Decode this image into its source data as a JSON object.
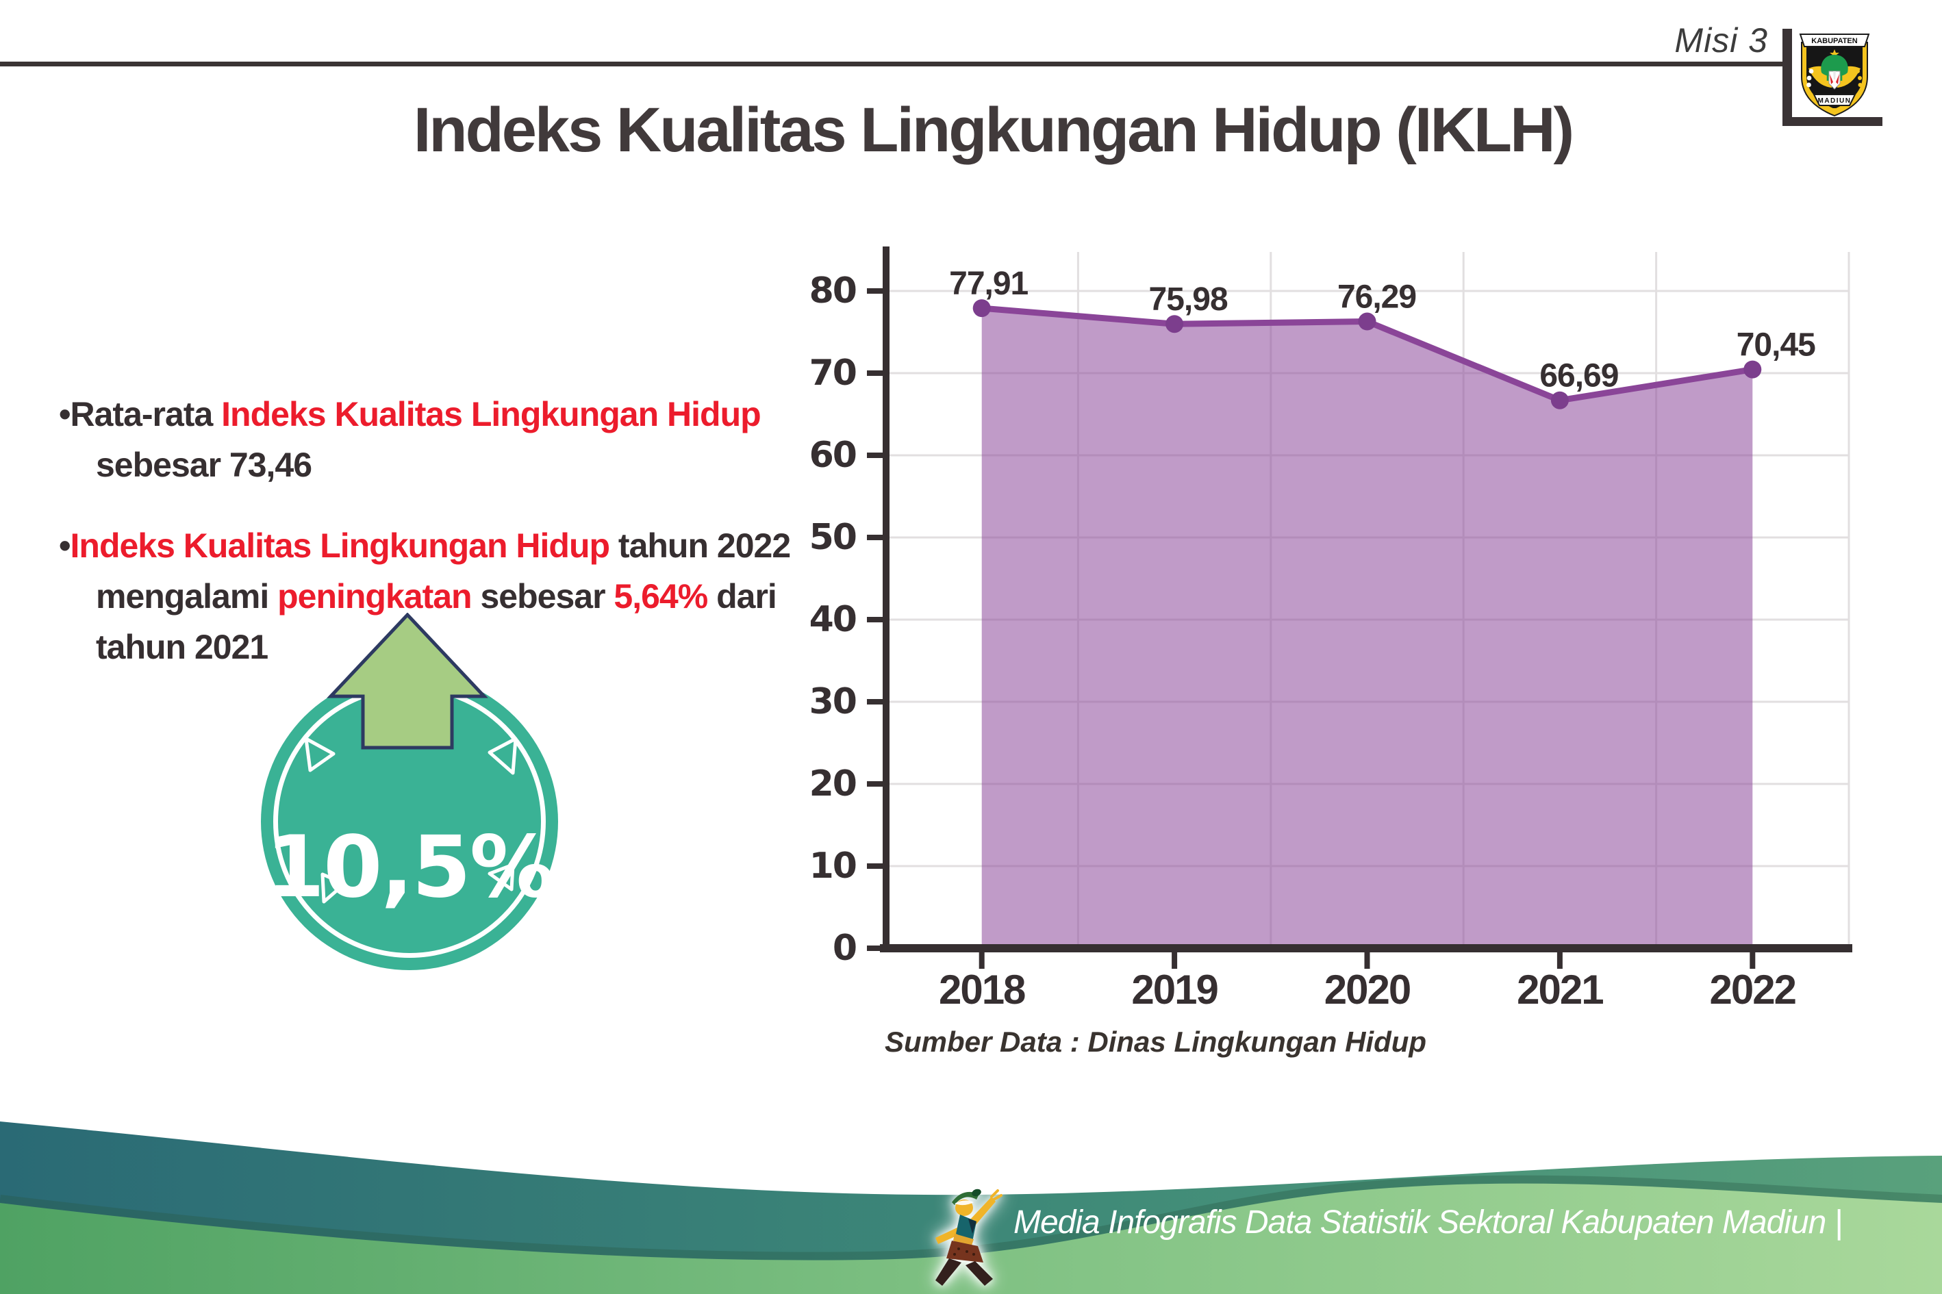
{
  "header": {
    "misi_label": "Misi 3",
    "title": "Indeks Kualitas Lingkungan Hidup (IKLH)"
  },
  "logo": {
    "top_text": "KABUPATEN",
    "bottom_text": "MADIUN"
  },
  "bullet_char": "•",
  "insights": [
    {
      "lines": [
        [
          {
            "t": "Rata-rata ",
            "c": "dark"
          },
          {
            "t": "Indeks Kualitas Lingkungan Hidup",
            "c": "red"
          }
        ],
        [
          {
            "t": "sebesar 73,46",
            "c": "dark"
          }
        ]
      ]
    },
    {
      "lines": [
        [
          {
            "t": "Indeks Kualitas Lingkungan Hidup",
            "c": "red"
          },
          {
            "t": " tahun 2022",
            "c": "dark"
          }
        ],
        [
          {
            "t": "mengalami ",
            "c": "dark"
          },
          {
            "t": "peningkatan",
            "c": "red"
          },
          {
            "t": " sebesar ",
            "c": "dark"
          },
          {
            "t": "5,64%",
            "c": "red"
          },
          {
            "t": " dari",
            "c": "dark"
          }
        ],
        [
          {
            "t": "tahun 2021",
            "c": "dark"
          }
        ]
      ]
    }
  ],
  "badge": {
    "value": "10,5%",
    "direction": "up"
  },
  "chart_data": {
    "type": "area",
    "categories": [
      "2018",
      "2019",
      "2020",
      "2021",
      "2022"
    ],
    "series": [
      {
        "name": "IKLH",
        "values": [
          77.91,
          75.98,
          76.29,
          66.69,
          70.45
        ]
      }
    ],
    "value_labels": [
      "77,91",
      "75,98",
      "76,29",
      "66,69",
      "70,45"
    ],
    "ylim": [
      0,
      80
    ],
    "ytick_step": 10,
    "grid": true,
    "legend": "none",
    "colors": {
      "area_fill": "rgba(141,72,155,0.55)",
      "line": "#8a4598",
      "marker": "#7c3e8d",
      "axis": "#362f31",
      "grid": "#e2dfe0",
      "label": "#362f31"
    }
  },
  "source_label": "Sumber Data : Dinas Lingkungan Hidup",
  "footer": {
    "credit": "Media Infografis Data Statistik Sektoral Kabupaten Madiun |"
  },
  "colors": {
    "accent_red": "#ec1c2c",
    "text_dark": "#362f31",
    "badge_teal": "#3ab295",
    "arrow_green": "#a6cc83",
    "arrow_outline": "#2d3a61",
    "footer_teal_start": "#2a6a75",
    "footer_teal_end": "#59a17c",
    "footer_green_start": "#4fa263",
    "footer_green_end": "#a9d89b"
  }
}
